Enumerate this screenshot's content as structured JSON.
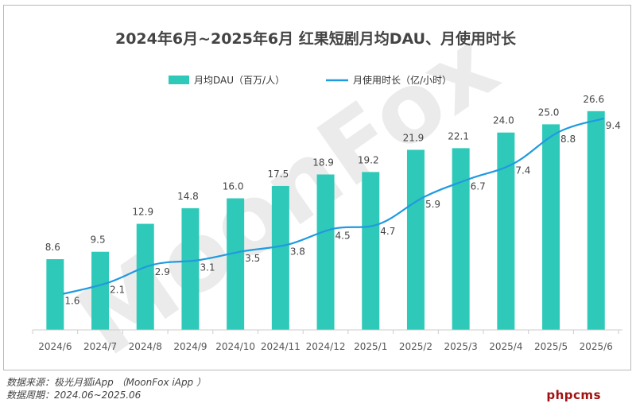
{
  "chart_data": {
    "type": "bar",
    "title": "2024年6月~2025年6月 红果短剧月均DAU、月使用时长",
    "categories": [
      "2024/6",
      "2024/7",
      "2024/8",
      "2024/9",
      "2024/10",
      "2024/11",
      "2024/12",
      "2025/1",
      "2025/2",
      "2025/3",
      "2025/4",
      "2025/5",
      "2025/6"
    ],
    "series": [
      {
        "name": "月均DAU（百万/人）",
        "type": "bar",
        "color": "#2ec9b8",
        "values": [
          8.6,
          9.5,
          12.9,
          14.8,
          16.0,
          17.5,
          18.9,
          19.2,
          21.9,
          22.1,
          24.0,
          25.0,
          26.6
        ]
      },
      {
        "name": "月使用时长（亿/小时）",
        "type": "line",
        "color": "#1f9ae0",
        "values": [
          1.6,
          2.1,
          2.9,
          3.1,
          3.5,
          3.8,
          4.5,
          4.7,
          5.9,
          6.7,
          7.4,
          8.8,
          9.4
        ]
      }
    ],
    "y_left_range": [
      0,
      29
    ],
    "y_right_range": [
      0,
      10.6
    ],
    "grid": false,
    "legend_position": "top-center",
    "watermark": "MoonFox"
  },
  "footer": {
    "source": "数据来源：极光月狐iApp （MoonFox iApp ）",
    "period": "数据周期：2024.06~2025.06"
  },
  "corner_logo": "phpcms"
}
